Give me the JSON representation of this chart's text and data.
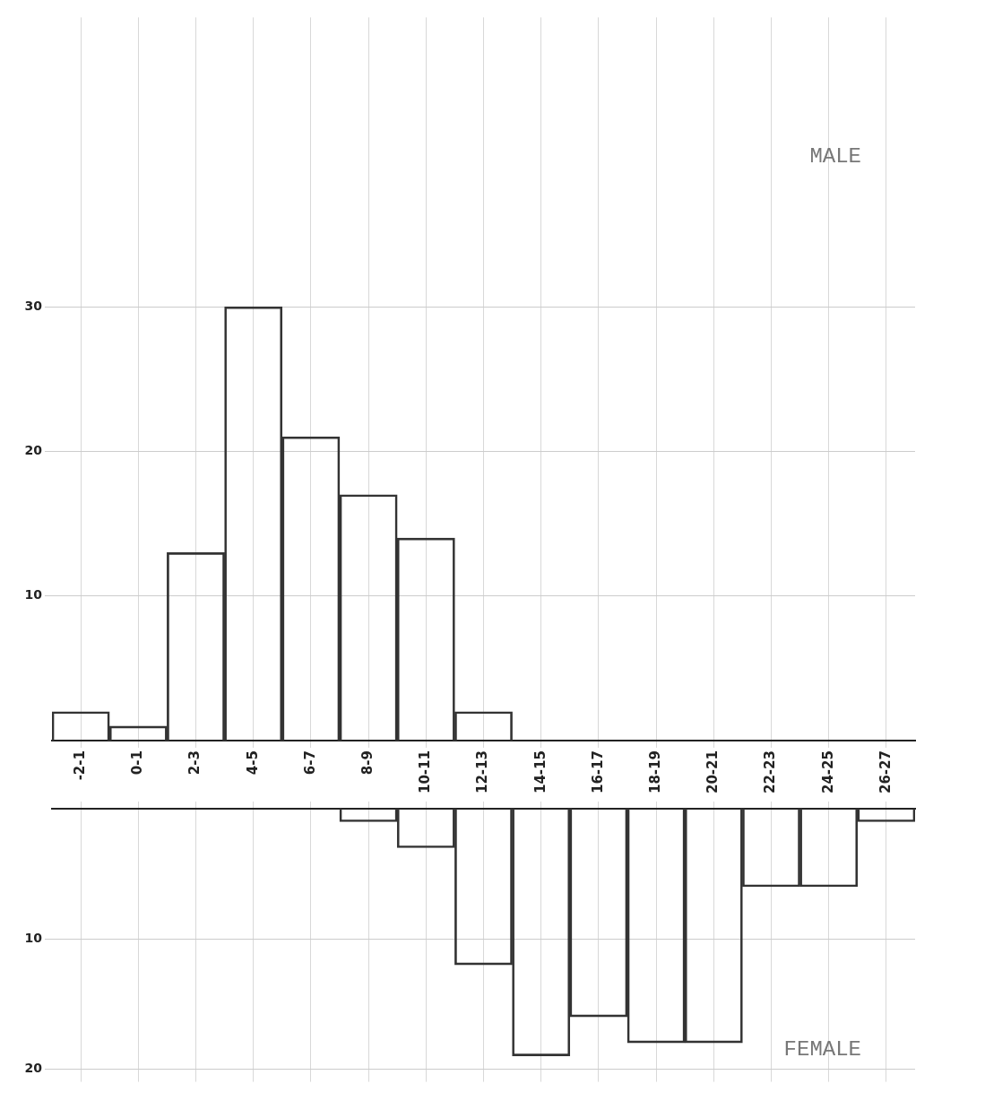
{
  "chart_data": [
    {
      "type": "bar",
      "categories": [
        "-2-1",
        "0-1",
        "2-3",
        "4-5",
        "6-7",
        "8-9",
        "10-11",
        "12-13",
        "14-15",
        "16-17",
        "18-19",
        "20-21",
        "22-23",
        "24-25",
        "26-27"
      ],
      "values": [
        2,
        1,
        13,
        30,
        21,
        17,
        14,
        2,
        0,
        0,
        0,
        0,
        0,
        0,
        0
      ],
      "color": "#333333",
      "ylim": [
        0,
        50
      ],
      "yticks": [
        10,
        20,
        30
      ],
      "grid": true,
      "annotations": [
        "MALE"
      ]
    },
    {
      "type": "bar",
      "categories": [
        null,
        null,
        null,
        null,
        null,
        null,
        null,
        null,
        null,
        null,
        null,
        null,
        null,
        null,
        null
      ],
      "values": [
        0,
        0,
        0,
        0,
        0,
        1,
        3,
        12,
        19,
        16,
        18,
        18,
        6,
        6,
        1
      ],
      "color": "#333333",
      "ylim": [
        21,
        0
      ],
      "yticks": [
        10,
        20
      ],
      "grid": true,
      "annotations": [
        "FEMALE"
      ]
    }
  ]
}
